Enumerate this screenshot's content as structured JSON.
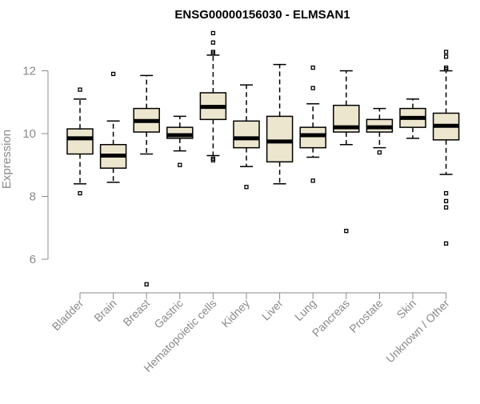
{
  "chart_data": {
    "type": "box",
    "title": "ENSG00000156030 - ELMSAN1",
    "xlabel": "",
    "ylabel": "Expression",
    "ylim": [
      5,
      13.5
    ],
    "yticks": [
      6,
      8,
      10,
      12
    ],
    "grid": false,
    "box_color": "#ede6cf",
    "median_color": "#000000",
    "categories": [
      "Bladder",
      "Brain",
      "Breast",
      "Gastric",
      "Hematopoietic cells",
      "Kidney",
      "Liver",
      "Lung",
      "Pancreas",
      "Prostate",
      "Skin",
      "Unknown / Other"
    ],
    "boxes": [
      {
        "category": "Bladder",
        "whisker_low": 8.4,
        "q1": 9.35,
        "median": 9.85,
        "q3": 10.15,
        "whisker_high": 11.1,
        "outliers": [
          11.4,
          8.1
        ]
      },
      {
        "category": "Brain",
        "whisker_low": 8.45,
        "q1": 8.9,
        "median": 9.3,
        "q3": 9.65,
        "whisker_high": 10.4,
        "outliers": [
          11.9
        ]
      },
      {
        "category": "Breast",
        "whisker_low": 9.35,
        "q1": 10.05,
        "median": 10.4,
        "q3": 10.8,
        "whisker_high": 11.85,
        "outliers": [
          5.2
        ]
      },
      {
        "category": "Gastric",
        "whisker_low": 9.45,
        "q1": 9.85,
        "median": 9.95,
        "q3": 10.2,
        "whisker_high": 10.55,
        "outliers": [
          9.0
        ]
      },
      {
        "category": "Hematopoietic cells",
        "whisker_low": 9.3,
        "q1": 10.45,
        "median": 10.85,
        "q3": 11.3,
        "whisker_high": 12.5,
        "outliers": [
          13.2,
          12.9,
          12.6,
          12.55,
          9.2,
          9.15
        ]
      },
      {
        "category": "Kidney",
        "whisker_low": 8.95,
        "q1": 9.55,
        "median": 9.85,
        "q3": 10.4,
        "whisker_high": 11.55,
        "outliers": [
          8.3
        ]
      },
      {
        "category": "Liver",
        "whisker_low": 8.4,
        "q1": 9.1,
        "median": 9.75,
        "q3": 10.55,
        "whisker_high": 12.2,
        "outliers": []
      },
      {
        "category": "Lung",
        "whisker_low": 9.25,
        "q1": 9.55,
        "median": 9.95,
        "q3": 10.2,
        "whisker_high": 10.95,
        "outliers": [
          12.1,
          11.45,
          8.5
        ]
      },
      {
        "category": "Pancreas",
        "whisker_low": 9.65,
        "q1": 10.05,
        "median": 10.2,
        "q3": 10.9,
        "whisker_high": 12.0,
        "outliers": [
          6.9
        ]
      },
      {
        "category": "Prostate",
        "whisker_low": 9.55,
        "q1": 10.05,
        "median": 10.2,
        "q3": 10.45,
        "whisker_high": 10.8,
        "outliers": [
          9.4
        ]
      },
      {
        "category": "Skin",
        "whisker_low": 9.85,
        "q1": 10.2,
        "median": 10.5,
        "q3": 10.8,
        "whisker_high": 11.1,
        "outliers": []
      },
      {
        "category": "Unknown / Other",
        "whisker_low": 8.7,
        "q1": 9.8,
        "median": 10.25,
        "q3": 10.65,
        "whisker_high": 12.0,
        "outliers": [
          12.6,
          12.45,
          12.1,
          12.05,
          8.1,
          7.85,
          7.65,
          6.5
        ]
      }
    ]
  }
}
